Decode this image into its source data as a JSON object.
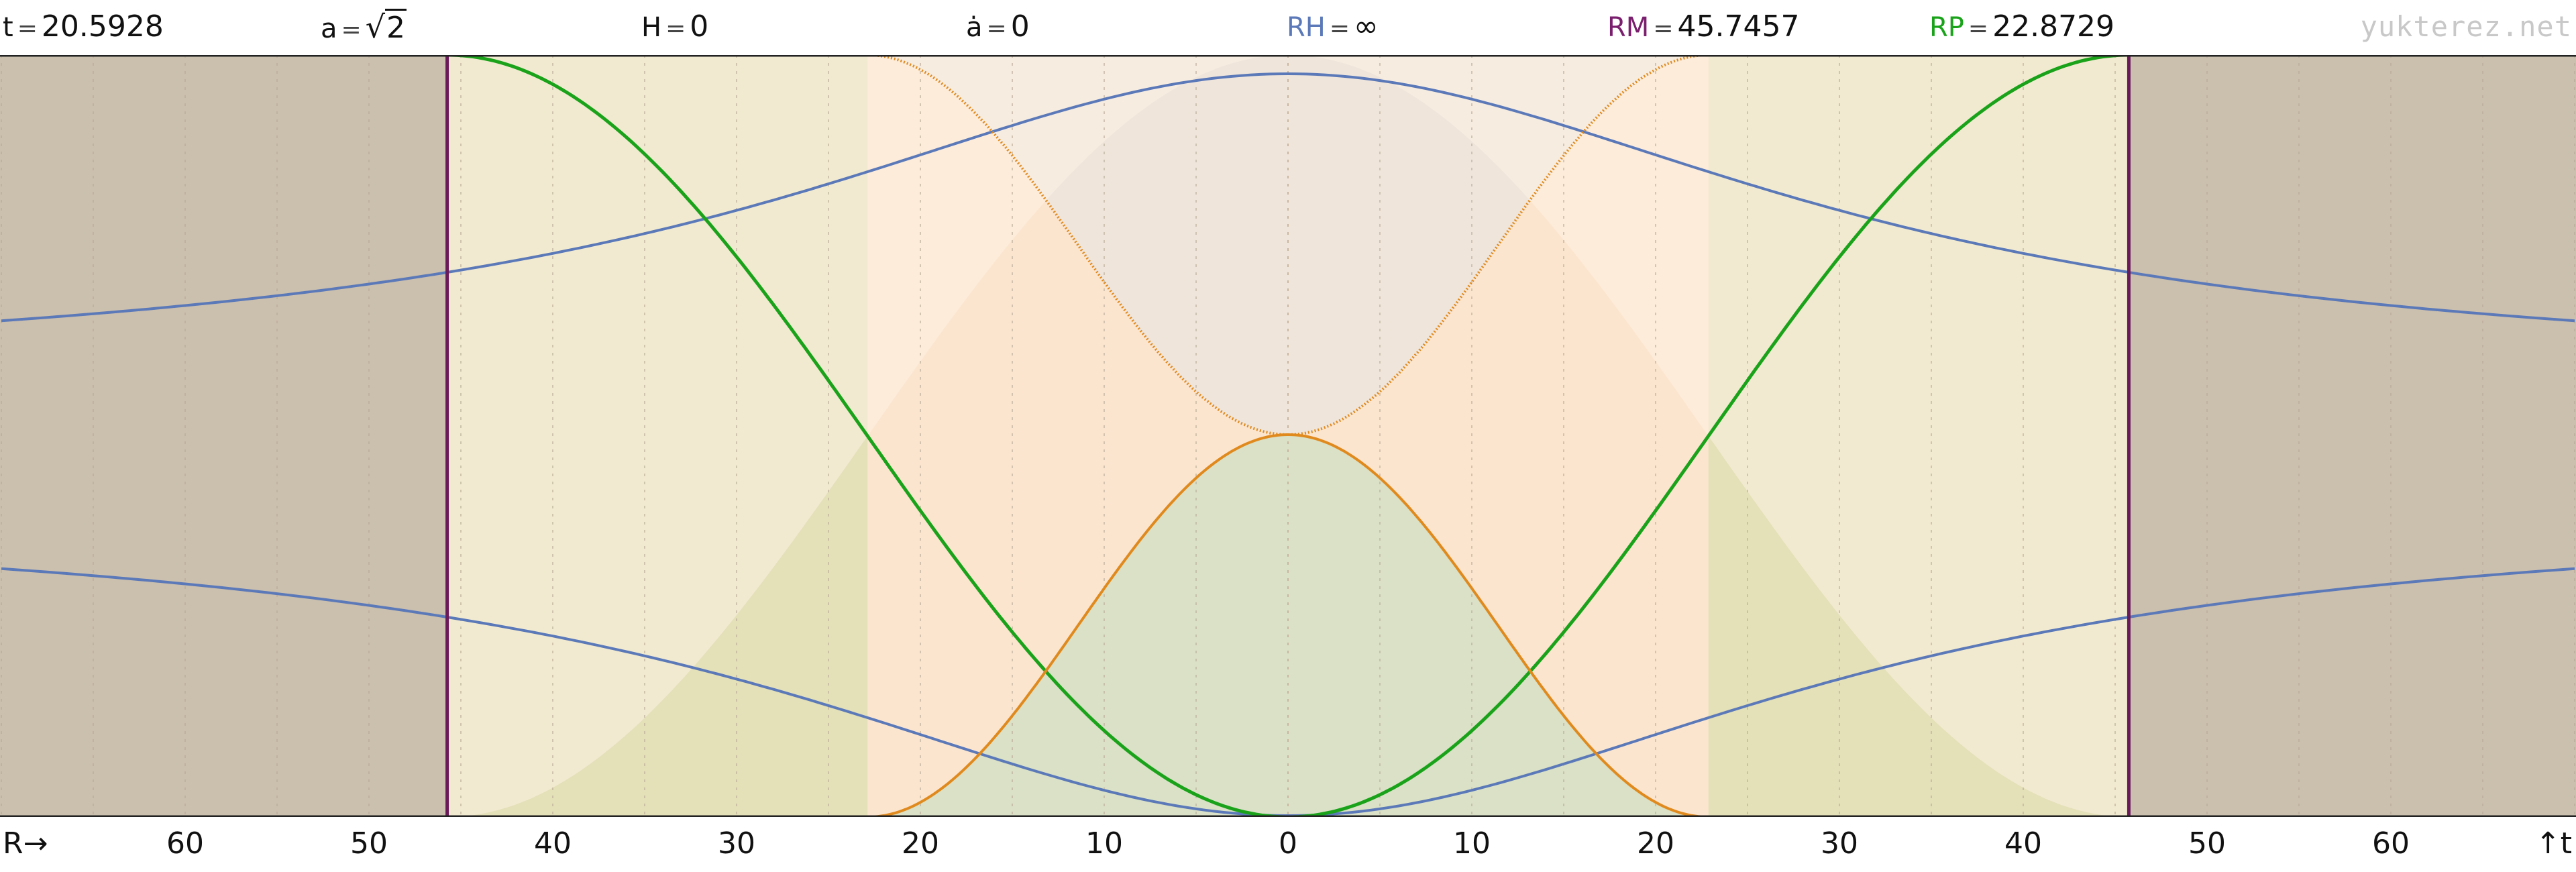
{
  "header": {
    "t": {
      "name": "t",
      "value": "20.5928"
    },
    "a": {
      "name": "a",
      "value": "2"
    },
    "H": {
      "name": "H",
      "value": "0"
    },
    "adot": {
      "name": "ȧ",
      "value": "0"
    },
    "RH": {
      "name": "RH",
      "value": "∞",
      "color": "#5b79b8"
    },
    "RM": {
      "name": "RM",
      "value": "45.7457",
      "color": "#7a1f6e"
    },
    "RP": {
      "name": "RP",
      "value": "22.8729",
      "color": "#1aa31a"
    },
    "eq_sign": "=",
    "sqrt_sign": "√",
    "brand": "yukterez.net"
  },
  "axis": {
    "left_label": "R→",
    "right_label": "↑t"
  },
  "colors": {
    "rh_curve": "#5b79b8",
    "rp_curve": "#1aa31a",
    "orange_curve": "#e08a1e",
    "rm_line": "#6a1a5a",
    "outer_fill": "#cbbfae",
    "mid_fill": "#e4e0b8",
    "inner_fill": "#fce5cf",
    "center_fill": "#fdf2e4"
  },
  "chart_data": {
    "type": "line",
    "title": "",
    "xlabel": "R",
    "ylabel": "t",
    "xlim": [
      -70,
      70
    ],
    "x_ticks": [
      -60,
      -50,
      -40,
      -30,
      -20,
      -10,
      0,
      10,
      20,
      30,
      40,
      50,
      60
    ],
    "x_tick_labels": [
      "60",
      "50",
      "40",
      "30",
      "20",
      "10",
      "0",
      "10",
      "20",
      "30",
      "40",
      "50",
      "60"
    ],
    "RM": 45.7457,
    "RP": 22.8729,
    "a": 1.41421,
    "t": 20.5928,
    "series": [
      {
        "key": "rh_upper",
        "type": "curve",
        "color": "#5b79b8",
        "description_value": "RH"
      },
      {
        "key": "rh_lower",
        "type": "curve",
        "color": "#5b79b8",
        "description_value": "RH"
      },
      {
        "key": "rp_left",
        "type": "curve",
        "color": "#1aa31a",
        "description_value": "RP"
      },
      {
        "key": "rp_right",
        "type": "curve",
        "color": "#1aa31a",
        "description_value": "RP"
      },
      {
        "key": "orange_left",
        "type": "curve",
        "color": "#e08a1e",
        "description_value": "RP"
      },
      {
        "key": "orange_right",
        "type": "curve",
        "color": "#e08a1e",
        "description_value": "RP"
      }
    ],
    "grid": true
  }
}
